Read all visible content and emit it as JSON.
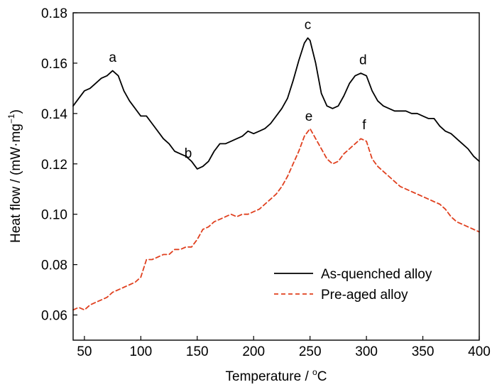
{
  "chart_data": {
    "type": "line",
    "xlabel_parts": [
      "Temperature / ",
      "o",
      "C"
    ],
    "ylabel_parts": [
      "Heat flow / (mW·mg",
      "−1",
      ")"
    ],
    "xlim": [
      40,
      400
    ],
    "ylim": [
      0.05,
      0.18
    ],
    "xticks": [
      50,
      100,
      150,
      200,
      250,
      300,
      350,
      400
    ],
    "yticks": [
      0.06,
      0.08,
      0.1,
      0.12,
      0.14,
      0.16,
      0.18
    ],
    "ytick_labels": [
      "0.06",
      "0.08",
      "0.10",
      "0.12",
      "0.14",
      "0.16",
      "0.18"
    ],
    "grid": false,
    "legend_position": "bottom-right",
    "series": [
      {
        "name": "As-quenched alloy",
        "color": "#000000",
        "dash": "solid",
        "x": [
          40,
          45,
          50,
          55,
          60,
          65,
          70,
          75,
          80,
          85,
          90,
          95,
          100,
          105,
          110,
          115,
          120,
          125,
          130,
          135,
          140,
          145,
          150,
          155,
          160,
          165,
          170,
          175,
          180,
          185,
          190,
          195,
          200,
          205,
          210,
          215,
          220,
          225,
          230,
          235,
          240,
          245,
          248,
          250,
          255,
          260,
          265,
          270,
          275,
          280,
          285,
          290,
          295,
          300,
          305,
          310,
          315,
          320,
          325,
          330,
          335,
          340,
          345,
          350,
          355,
          360,
          365,
          370,
          375,
          380,
          385,
          390,
          395,
          400
        ],
        "y": [
          0.143,
          0.146,
          0.149,
          0.15,
          0.152,
          0.154,
          0.155,
          0.157,
          0.155,
          0.149,
          0.145,
          0.142,
          0.139,
          0.139,
          0.136,
          0.133,
          0.13,
          0.128,
          0.125,
          0.124,
          0.123,
          0.121,
          0.118,
          0.119,
          0.121,
          0.125,
          0.128,
          0.128,
          0.129,
          0.13,
          0.131,
          0.133,
          0.132,
          0.133,
          0.134,
          0.136,
          0.139,
          0.142,
          0.146,
          0.153,
          0.161,
          0.168,
          0.17,
          0.169,
          0.16,
          0.148,
          0.143,
          0.142,
          0.143,
          0.147,
          0.152,
          0.155,
          0.156,
          0.155,
          0.149,
          0.145,
          0.143,
          0.142,
          0.141,
          0.141,
          0.141,
          0.14,
          0.14,
          0.139,
          0.138,
          0.138,
          0.135,
          0.133,
          0.132,
          0.13,
          0.128,
          0.126,
          0.123,
          0.121
        ]
      },
      {
        "name": "Pre-aged alloy",
        "color": "#e0401f",
        "dash": "dashed",
        "x": [
          40,
          45,
          50,
          55,
          60,
          65,
          70,
          75,
          80,
          85,
          90,
          95,
          100,
          105,
          110,
          115,
          120,
          125,
          130,
          135,
          140,
          145,
          150,
          155,
          160,
          165,
          170,
          175,
          180,
          185,
          190,
          195,
          200,
          205,
          210,
          215,
          220,
          225,
          230,
          235,
          240,
          245,
          250,
          255,
          260,
          265,
          270,
          275,
          280,
          285,
          290,
          295,
          300,
          305,
          310,
          315,
          320,
          325,
          330,
          335,
          340,
          345,
          350,
          355,
          360,
          365,
          370,
          375,
          380,
          385,
          390,
          395,
          400
        ],
        "y": [
          0.062,
          0.063,
          0.062,
          0.064,
          0.065,
          0.066,
          0.067,
          0.069,
          0.07,
          0.071,
          0.072,
          0.073,
          0.075,
          0.082,
          0.082,
          0.083,
          0.084,
          0.084,
          0.086,
          0.086,
          0.087,
          0.087,
          0.09,
          0.094,
          0.095,
          0.097,
          0.098,
          0.099,
          0.1,
          0.099,
          0.1,
          0.1,
          0.101,
          0.102,
          0.104,
          0.106,
          0.108,
          0.111,
          0.115,
          0.12,
          0.125,
          0.131,
          0.134,
          0.13,
          0.126,
          0.122,
          0.12,
          0.121,
          0.124,
          0.126,
          0.128,
          0.13,
          0.129,
          0.122,
          0.119,
          0.117,
          0.115,
          0.113,
          0.111,
          0.11,
          0.109,
          0.108,
          0.107,
          0.106,
          0.105,
          0.104,
          0.102,
          0.099,
          0.097,
          0.096,
          0.095,
          0.094,
          0.093
        ]
      }
    ],
    "annotations": [
      {
        "text": "a",
        "x": 75,
        "y": 0.1605
      },
      {
        "text": "b",
        "x": 142,
        "y": 0.1225
      },
      {
        "text": "c",
        "x": 248,
        "y": 0.1735
      },
      {
        "text": "d",
        "x": 297,
        "y": 0.1595
      },
      {
        "text": "e",
        "x": 249,
        "y": 0.1372
      },
      {
        "text": "f",
        "x": 298,
        "y": 0.1338
      }
    ]
  }
}
